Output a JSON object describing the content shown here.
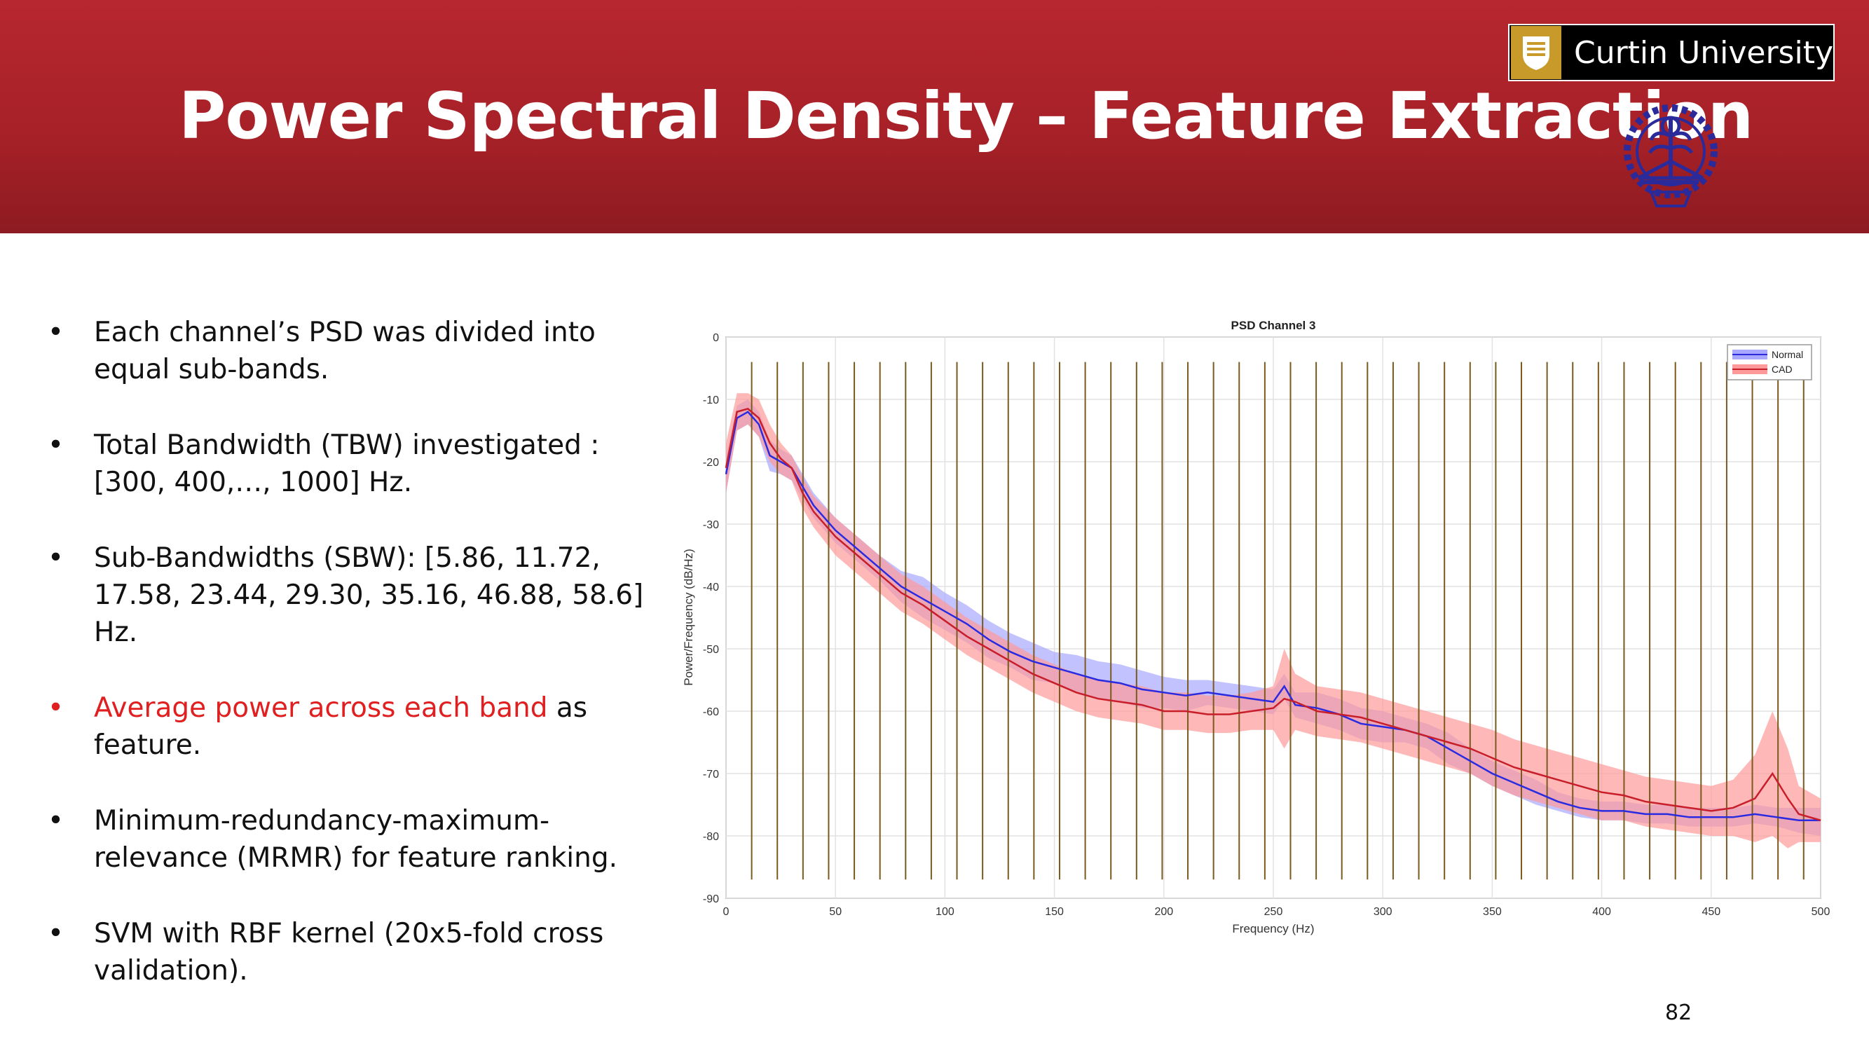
{
  "slide": {
    "title": "Power Spectral Density – Feature Extraction",
    "page_number": "82",
    "logo_text": "Curtin University",
    "colors": {
      "header": "#b7272f",
      "highlight": "#e02020",
      "seal": "#2a2a9a"
    }
  },
  "bullets": [
    {
      "text": "Each channel’s PSD was divided into equal sub-bands."
    },
    {
      "text": "Total Bandwidth (TBW) investigated : [300, 400,…, 1000] Hz."
    },
    {
      "text": "Sub-Bandwidths (SBW): [5.86, 11.72, 17.58, 23.44, 29.30, 35.16, 46.88, 58.6] Hz."
    },
    {
      "highlight": "Average power across each band",
      "text": " as feature."
    },
    {
      "text": "Minimum-redundancy-maximum-relevance (MRMR) for feature ranking."
    },
    {
      "text": "SVM with RBF kernel (20x5-fold cross validation)."
    }
  ],
  "chart_data": {
    "type": "line",
    "title": "PSD Channel 3",
    "xlabel": "Frequency (Hz)",
    "ylabel": "Power/Frequency (dB/Hz)",
    "xlim": [
      0,
      500
    ],
    "ylim": [
      -90,
      0
    ],
    "xticks": [
      0,
      50,
      100,
      150,
      200,
      250,
      300,
      350,
      400,
      450,
      500
    ],
    "yticks": [
      0,
      -10,
      -20,
      -30,
      -40,
      -50,
      -60,
      -70,
      -80,
      -90
    ],
    "grid": true,
    "legend_position": "top-right",
    "band_lines_x": [
      11.72,
      23.44,
      35.16,
      46.88,
      58.6,
      70.32,
      82.04,
      93.76,
      105.48,
      117.2,
      128.92,
      140.64,
      152.36,
      164.08,
      175.8,
      187.52,
      199.24,
      210.96,
      222.68,
      234.4,
      246.12,
      257.84,
      269.56,
      281.28,
      293.0,
      304.72,
      316.44,
      328.16,
      339.88,
      351.6,
      363.32,
      375.04,
      386.76,
      398.48,
      410.2,
      421.92,
      433.64,
      445.36,
      457.08,
      468.8,
      480.52,
      492.24
    ],
    "band_line_color": "#7a5a1e",
    "series": [
      {
        "name": "Normal",
        "color": "#2a2ae0",
        "band_color": "#a8a8ff",
        "x": [
          0,
          5,
          10,
          15,
          20,
          25,
          30,
          35,
          40,
          50,
          60,
          70,
          80,
          90,
          100,
          110,
          120,
          130,
          140,
          150,
          160,
          170,
          180,
          190,
          200,
          210,
          220,
          230,
          240,
          250,
          255,
          260,
          270,
          280,
          290,
          300,
          310,
          320,
          330,
          340,
          350,
          360,
          370,
          380,
          390,
          400,
          410,
          420,
          430,
          440,
          450,
          460,
          470,
          480,
          490,
          500
        ],
        "mean": [
          -22,
          -13,
          -12,
          -14,
          -19,
          -20,
          -21,
          -24,
          -27,
          -31,
          -34,
          -37,
          -40,
          -42,
          -44,
          -46,
          -48.5,
          -50.5,
          -52,
          -53,
          -54,
          -55,
          -55.5,
          -56.5,
          -57,
          -57.5,
          -57,
          -57.5,
          -58,
          -58.5,
          -56,
          -59,
          -59.5,
          -60.5,
          -62,
          -62.5,
          -63,
          -64,
          -66,
          -68,
          -70,
          -71.5,
          -73,
          -74.5,
          -75.5,
          -76,
          -76,
          -76.5,
          -76.5,
          -77,
          -77,
          -77,
          -76.5,
          -77,
          -77.5,
          -77.5
        ],
        "upper": [
          -19,
          -11,
          -10,
          -12,
          -16.5,
          -18,
          -19,
          -22,
          -25,
          -29,
          -32,
          -35,
          -37.5,
          -38.5,
          -41,
          -43,
          -45.5,
          -47.5,
          -49,
          -50.5,
          -51,
          -52,
          -52.5,
          -53.5,
          -54.5,
          -55,
          -55,
          -55.5,
          -56,
          -56.5,
          -54,
          -57,
          -57,
          -58,
          -59.5,
          -60,
          -61,
          -62,
          -63.5,
          -66,
          -68,
          -69.5,
          -71,
          -73,
          -74,
          -74.5,
          -74.5,
          -75,
          -75,
          -75.5,
          -75.5,
          -75.5,
          -75,
          -75.5,
          -75.5,
          -75.5
        ],
        "lower": [
          -25,
          -15,
          -14,
          -16,
          -21.5,
          -22,
          -23,
          -26,
          -29,
          -33,
          -36,
          -39,
          -42.5,
          -45,
          -47,
          -49,
          -51.5,
          -53,
          -55,
          -55.5,
          -57,
          -58,
          -58.5,
          -59.5,
          -59.5,
          -60,
          -59,
          -59.5,
          -60,
          -60.5,
          -58,
          -61,
          -62,
          -63,
          -64.5,
          -65,
          -65,
          -66,
          -68.5,
          -70,
          -72,
          -73.5,
          -75,
          -76,
          -77,
          -77.5,
          -77.5,
          -78,
          -78,
          -78.5,
          -78.5,
          -78.5,
          -78,
          -78.5,
          -79.5,
          -80
        ]
      },
      {
        "name": "CAD",
        "color": "#c81e2a",
        "band_color": "#ff9a9a",
        "x": [
          0,
          5,
          10,
          15,
          20,
          25,
          30,
          35,
          40,
          50,
          60,
          70,
          80,
          90,
          100,
          110,
          120,
          130,
          140,
          150,
          160,
          170,
          180,
          190,
          200,
          210,
          220,
          230,
          240,
          250,
          255,
          260,
          270,
          280,
          290,
          300,
          310,
          320,
          330,
          340,
          350,
          360,
          370,
          380,
          390,
          400,
          410,
          420,
          430,
          440,
          450,
          460,
          470,
          478,
          485,
          490,
          500
        ],
        "mean": [
          -21,
          -12,
          -11.5,
          -13,
          -17,
          -19.5,
          -21,
          -25,
          -28,
          -32,
          -35,
          -38,
          -41,
          -43,
          -45.5,
          -48,
          -50,
          -52,
          -54,
          -55.5,
          -57,
          -58,
          -58.5,
          -59,
          -60,
          -60,
          -60.5,
          -60.5,
          -60,
          -59.5,
          -58,
          -58.5,
          -60,
          -60.5,
          -61,
          -62,
          -63,
          -64,
          -65,
          -66,
          -67.5,
          -69,
          -70,
          -71,
          -72,
          -73,
          -73.5,
          -74.5,
          -75,
          -75.5,
          -76,
          -75.5,
          -74,
          -70,
          -74,
          -76.5,
          -77.5
        ],
        "upper": [
          -17,
          -9,
          -9,
          -10,
          -14,
          -17,
          -19,
          -22.5,
          -25.5,
          -29,
          -32,
          -35,
          -38,
          -40,
          -42.5,
          -45,
          -47,
          -49,
          -51,
          -52.5,
          -54,
          -55,
          -55.5,
          -56,
          -57,
          -57,
          -57.5,
          -57.5,
          -57,
          -56,
          -50,
          -54,
          -56,
          -56.5,
          -57,
          -58,
          -59,
          -60,
          -61,
          -62,
          -63,
          -64.5,
          -65.5,
          -66.5,
          -67.5,
          -68.5,
          -69.5,
          -70.5,
          -71,
          -71.5,
          -72,
          -71,
          -67,
          -60,
          -66,
          -72,
          -74
        ],
        "lower": [
          -25,
          -15,
          -14,
          -16,
          -20,
          -22,
          -23,
          -27.5,
          -30.5,
          -35,
          -38,
          -41,
          -44,
          -46,
          -48.5,
          -51,
          -53,
          -55,
          -57,
          -58.5,
          -60,
          -61,
          -61.5,
          -62,
          -63,
          -63,
          -63.5,
          -63.5,
          -63,
          -63,
          -66,
          -63,
          -64,
          -64.5,
          -65,
          -66,
          -67,
          -68,
          -69,
          -70,
          -72,
          -73.5,
          -74.5,
          -75.5,
          -76.5,
          -77.5,
          -77.5,
          -78.5,
          -79,
          -79.5,
          -80,
          -80,
          -81,
          -80,
          -82,
          -81,
          -81
        ]
      }
    ]
  }
}
